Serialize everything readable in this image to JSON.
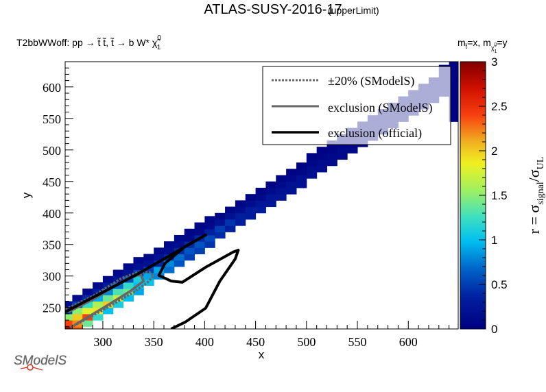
{
  "header": {
    "title": "ATLAS-SUSY-2016-17",
    "subtitle": "(upperLimit)",
    "process": "T2bbWWoff: pp  → t̃ t̃, t̃  → b W*  χ̃",
    "process_sup": "0",
    "process_sub": "1",
    "mass_label_a": "m",
    "mass_label_a_sub": "t̃",
    "mass_label_b": "=x, m",
    "mass_label_b_sub": "χ̃",
    "mass_label_b_subsub": "1",
    "mass_label_b_subsup": "0",
    "mass_label_c": "=y"
  },
  "logo": {
    "text": "SModelS"
  },
  "colors": {
    "frame": "#000000",
    "smodels_line": "#666666",
    "official_line": "#000000"
  },
  "chart_data": {
    "type": "heatmap",
    "title": "ATLAS-SUSY-2016-17 (upperLimit)",
    "xlabel": "x",
    "ylabel": "y",
    "xlim": [
      263,
      649
    ],
    "ylim": [
      216,
      640
    ],
    "xticks": [
      "300",
      "350",
      "400",
      "450",
      "500",
      "550",
      "600"
    ],
    "yticks": [
      "250",
      "300",
      "350",
      "400",
      "450",
      "500",
      "550",
      "600"
    ],
    "colorbar": {
      "label": "r = σ",
      "label_sub1": "signal",
      "label_mid": "/σ",
      "label_sub2": "UL",
      "range": [
        0,
        3
      ],
      "ticks": [
        "0",
        "0.5",
        "1",
        "1.5",
        "2",
        "2.5",
        "3"
      ]
    },
    "cell_size": [
      10,
      10
    ],
    "columns": [
      {
        "x": 260,
        "y0": 200,
        "r": [
          2.5,
          2.9,
          2.4,
          1.5,
          0.5,
          0.15
        ]
      },
      {
        "x": 270,
        "y0": 210,
        "r": [
          2.3,
          2.2,
          2.0,
          1.5,
          0.5,
          0.15
        ]
      },
      {
        "x": 280,
        "y0": 220,
        "r": [
          1.4,
          2.4,
          1.8,
          1.2,
          0.4,
          0.1
        ]
      },
      {
        "x": 290,
        "y0": 230,
        "r": [
          1.2,
          1.9,
          1.6,
          0.9,
          0.3,
          0.1
        ]
      },
      {
        "x": 300,
        "y0": 240,
        "r": [
          1.0,
          2.0,
          1.4,
          0.8,
          0.3,
          0.1
        ]
      },
      {
        "x": 310,
        "y0": 250,
        "r": [
          1.1,
          1.7,
          1.3,
          0.7,
          0.25,
          0.1
        ]
      },
      {
        "x": 320,
        "y0": 260,
        "r": [
          1.0,
          1.4,
          1.2,
          0.6,
          0.2,
          0.1
        ]
      },
      {
        "x": 330,
        "y0": 270,
        "r": [
          0.9,
          1.0,
          1.1,
          0.5,
          0.2,
          0.1
        ]
      },
      {
        "x": 340,
        "y0": 285,
        "r": [
          1.0,
          0.9,
          0.5,
          0.2,
          0.1
        ]
      },
      {
        "x": 350,
        "y0": 295,
        "r": [
          0.8,
          0.9,
          0.4,
          0.2,
          0.1
        ]
      },
      {
        "x": 360,
        "y0": 305,
        "r": [
          0.7,
          0.8,
          0.4,
          0.15,
          0.1
        ]
      },
      {
        "x": 370,
        "y0": 315,
        "r": [
          0.6,
          0.7,
          0.4,
          0.15,
          0.1
        ]
      },
      {
        "x": 380,
        "y0": 325,
        "r": [
          0.5,
          0.6,
          0.4,
          0.1,
          0.08
        ]
      },
      {
        "x": 390,
        "y0": 335,
        "r": [
          0.5,
          0.6,
          0.4,
          0.1,
          0.08
        ]
      },
      {
        "x": 400,
        "y0": 345,
        "r": [
          0.45,
          0.55,
          0.35,
          0.1,
          0.08
        ]
      },
      {
        "x": 410,
        "y0": 360,
        "r": [
          0.4,
          0.5,
          0.2,
          0.08
        ]
      },
      {
        "x": 420,
        "y0": 370,
        "r": [
          0.35,
          0.45,
          0.2,
          0.08
        ]
      },
      {
        "x": 430,
        "y0": 380,
        "r": [
          0.3,
          0.35,
          0.15,
          0.08
        ]
      },
      {
        "x": 440,
        "y0": 390,
        "r": [
          0.3,
          0.3,
          0.15,
          0.06
        ]
      },
      {
        "x": 450,
        "y0": 400,
        "r": [
          0.3,
          0.25,
          0.12,
          0.06
        ]
      },
      {
        "x": 460,
        "y0": 410,
        "r": [
          0.25,
          0.25,
          0.12,
          0.06
        ]
      },
      {
        "x": 470,
        "y0": 420,
        "r": [
          0.25,
          0.2,
          0.1,
          0.06
        ]
      },
      {
        "x": 480,
        "y0": 430,
        "r": [
          0.2,
          0.2,
          0.1,
          0.05
        ]
      },
      {
        "x": 490,
        "y0": 440,
        "r": [
          0.2,
          0.18,
          0.08,
          0.05
        ]
      },
      {
        "x": 500,
        "y0": 455,
        "r": [
          0.18,
          0.15,
          0.08,
          0.05
        ]
      },
      {
        "x": 510,
        "y0": 465,
        "r": [
          0.15,
          0.12,
          0.06,
          0.05
        ]
      },
      {
        "x": 520,
        "y0": 475,
        "r": [
          0.12,
          0.1,
          0.06,
          0.05
        ]
      },
      {
        "x": 530,
        "y0": 485,
        "r": [
          0.1,
          0.1,
          0.05,
          0.05
        ]
      },
      {
        "x": 540,
        "y0": 495,
        "r": [
          0.1,
          0.08,
          0.05,
          0.05
        ]
      },
      {
        "x": 550,
        "y0": 505,
        "r": [
          0.08,
          0.08,
          0.05,
          0.05
        ]
      },
      {
        "x": 560,
        "y0": 515,
        "r": [
          0.08,
          0.06,
          0.05,
          0.05
        ]
      },
      {
        "x": 570,
        "y0": 525,
        "r": [
          0.06,
          0.06,
          0.05,
          0.05
        ]
      },
      {
        "x": 580,
        "y0": 535,
        "r": [
          0.06,
          0.05,
          0.05,
          0.05
        ]
      },
      {
        "x": 590,
        "y0": 545,
        "r": [
          0.05,
          0.05,
          0.05,
          0.05
        ]
      },
      {
        "x": 600,
        "y0": 555,
        "r": [
          0.05,
          0.05,
          0.05,
          0.05
        ]
      },
      {
        "x": 610,
        "y0": 565,
        "r": [
          0.05,
          0.05,
          0.05,
          0.05
        ]
      },
      {
        "x": 620,
        "y0": 575,
        "r": [
          0.05,
          0.05,
          0.05,
          0.05
        ]
      },
      {
        "x": 630,
        "y0": 585,
        "r": [
          0.05,
          0.05,
          0.05,
          0.05,
          0.05
        ]
      },
      {
        "x": 640,
        "y0": 545,
        "r": [
          0.05,
          0.05,
          0.05,
          0.05,
          0.05,
          0.05,
          0.05,
          0.05,
          0.05,
          0.05
        ]
      }
    ],
    "contours": {
      "official": [
        [
          263,
          243
        ],
        [
          334,
          303
        ],
        [
          401,
          365
        ],
        [
          381,
          347
        ],
        [
          361,
          320
        ],
        [
          355,
          301
        ],
        [
          367,
          292
        ],
        [
          378,
          290
        ],
        [
          401,
          314
        ],
        [
          428,
          338
        ],
        [
          433,
          341
        ],
        [
          430,
          327
        ],
        [
          415,
          292
        ],
        [
          401,
          249
        ],
        [
          381,
          227
        ],
        [
          367,
          216
        ]
      ],
      "smodels": [
        [
          272,
          222
        ],
        [
          300,
          249
        ],
        [
          327,
          276
        ],
        [
          340,
          292
        ],
        [
          337,
          303
        ],
        [
          320,
          292
        ],
        [
          293,
          265
        ],
        [
          266,
          243
        ]
      ],
      "smodels_pm20": [
        [
          268,
          218
        ],
        [
          300,
          246
        ],
        [
          330,
          274
        ],
        [
          344,
          290
        ],
        [
          350,
          300
        ],
        [
          346,
          306
        ],
        [
          334,
          306
        ],
        [
          318,
          296
        ],
        [
          290,
          268
        ],
        [
          263,
          247
        ]
      ]
    },
    "legend": {
      "placement": "top-right",
      "entries": [
        "±20% (SModelS)",
        "exclusion (SModelS)",
        "exclusion (official)"
      ]
    }
  }
}
